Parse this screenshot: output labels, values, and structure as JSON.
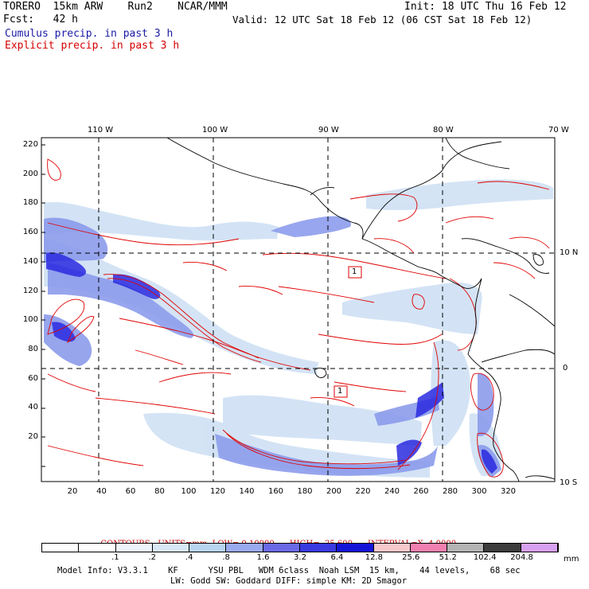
{
  "header": {
    "line1_left": "TORERO  15km ARW    Run2    NCAR/MMM",
    "line1_right": "Init: 18 UTC Thu 16 Feb 12",
    "line2_left": "Fcst:   42 h",
    "line2_right": "Valid: 12 UTC Sat 18 Feb 12 (06 CST Sat 18 Feb 12)",
    "line3": "Cumulus precip. in past 3 h",
    "line4": "Explicit precip. in past 3 h"
  },
  "axes": {
    "top_labels": [
      "110 W",
      "100 W",
      "90 W",
      "80 W",
      "70 W"
    ],
    "right_labels": [
      "10 N",
      "0",
      "10 S"
    ],
    "left_ticks": [
      "220",
      "200",
      "180",
      "160",
      "140",
      "120",
      "100",
      "80",
      "60",
      "40",
      "20"
    ],
    "bottom_ticks": [
      "20",
      "40",
      "60",
      "80",
      "100",
      "120",
      "140",
      "160",
      "180",
      "200",
      "220",
      "240",
      "260",
      "280",
      "300",
      "320"
    ]
  },
  "map_labels": [
    "1",
    "1"
  ],
  "contours": {
    "title": "CONTOURS:",
    "units": "UNITS=mm",
    "low": "LOW= 0.10000",
    "high": "HIGH=  25.600",
    "interval": "INTERVAL=X  4.0000"
  },
  "colorbar": {
    "labels": [
      ".1",
      ".2",
      ".4",
      ".8",
      "1.6",
      "3.2",
      "6.4",
      "12.8",
      "25.6",
      "51.2",
      "102.4",
      "204.8"
    ],
    "unit": "mm",
    "colors": [
      "#ffffff",
      "#ffffff",
      "#eef4fb",
      "#d8e8f6",
      "#b8d4f0",
      "#9aaaf0",
      "#6a6ae8",
      "#3a3ae0",
      "#1414d8",
      "#f7c8cc",
      "#f080b0",
      "#b4b4b4",
      "#3c3c3c",
      "#d8a0f0"
    ]
  },
  "model_info": {
    "line1": "Model Info: V3.3.1    KF      YSU PBL   WDM 6class  Noah LSM  15 km,    44 levels,    68 sec",
    "line2": "LW: Godd SW: Goddard DIFF: simple KM: 2D Smagor"
  }
}
